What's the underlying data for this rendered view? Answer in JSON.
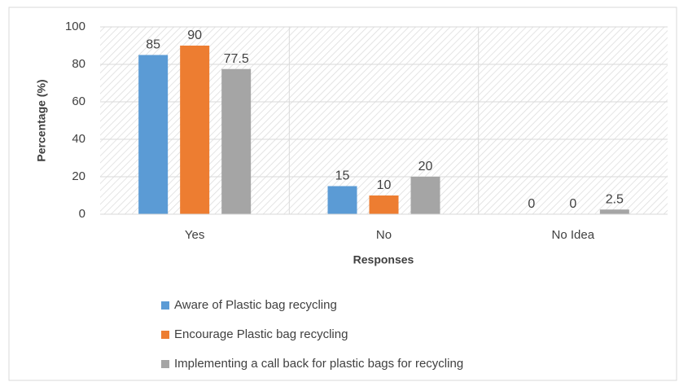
{
  "chart_data": {
    "type": "bar",
    "categories": [
      "Yes",
      "No",
      "No Idea"
    ],
    "series": [
      {
        "name": "Aware of Plastic bag recycling",
        "color": "#5b9bd5",
        "values": [
          85,
          15,
          0
        ]
      },
      {
        "name": "Encourage Plastic bag recycling",
        "color": "#ed7d31",
        "values": [
          90,
          10,
          0
        ]
      },
      {
        "name": "Implementing a call back for plastic bags for recycling",
        "color": "#a5a5a5",
        "values": [
          77.5,
          20,
          2.5
        ]
      }
    ],
    "ylabel": "Percentage (%)",
    "xlabel": "Responses",
    "ylim": [
      0,
      100
    ],
    "yticks": [
      0,
      20,
      40,
      60,
      80,
      100
    ],
    "grid": true
  }
}
